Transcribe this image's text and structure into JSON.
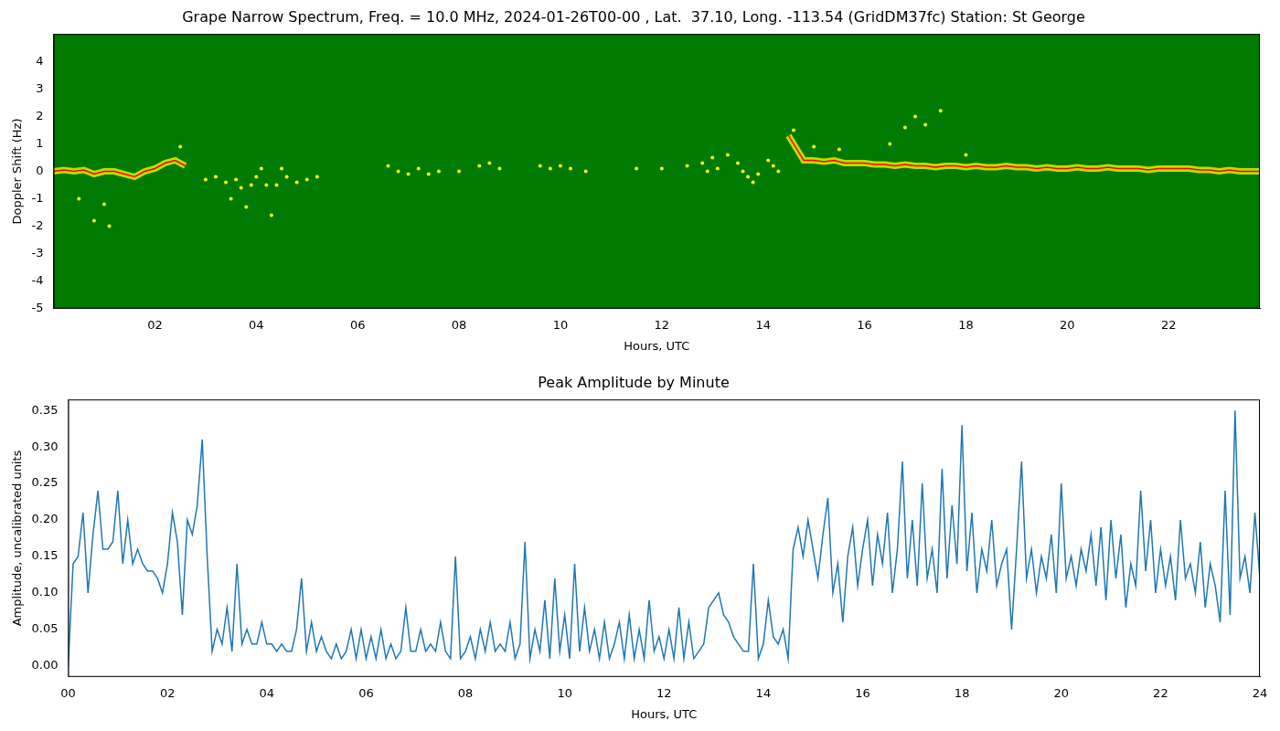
{
  "chart_data": [
    {
      "type": "line",
      "title": "Grape Narrow Spectrum, Freq. = 10.0 MHz, 2024-01-26T00-00 , Lat.  37.10, Long. -113.54 (GridDM37fc) Station: St George",
      "x_label": "Hours, UTC",
      "y_label": "Doppler Shift (Hz)",
      "xlim": [
        0,
        23.8
      ],
      "xticks": [
        {
          "value": 2,
          "label": "02"
        },
        {
          "value": 4,
          "label": "04"
        },
        {
          "value": 6,
          "label": "06"
        },
        {
          "value": 8,
          "label": "08"
        },
        10,
        12,
        14,
        16,
        18,
        20,
        22
      ],
      "ylim": [
        -5,
        5
      ],
      "yticks": [
        -5,
        -4,
        -3,
        -2,
        -1,
        0,
        1,
        2,
        3,
        4
      ],
      "grid": false,
      "series": [
        {
          "type": "scatter",
          "color": "#ffff00",
          "marker": "dot",
          "x": [
            0.5,
            0.8,
            1.0,
            1.1,
            2.5,
            3.0,
            3.2,
            3.4,
            3.5,
            3.6,
            3.7,
            3.8,
            3.9,
            4.0,
            4.1,
            4.2,
            4.3,
            4.4,
            4.5,
            4.6,
            4.8,
            5.0,
            5.2,
            6.6,
            6.8,
            7.0,
            7.2,
            7.4,
            7.6,
            8.0,
            8.4,
            8.6,
            8.8,
            9.6,
            9.8,
            10.0,
            10.2,
            10.5,
            11.5,
            12.0,
            12.5,
            12.8,
            12.9,
            13.0,
            13.1,
            13.3,
            13.5,
            13.6,
            13.7,
            13.8,
            13.9,
            14.1,
            14.2,
            14.3,
            14.6,
            15.0,
            15.5,
            16.5,
            16.8,
            17.0,
            17.2,
            17.5,
            18.0
          ],
          "values": [
            -1.0,
            -1.8,
            -1.2,
            -2.0,
            0.9,
            -0.3,
            -0.2,
            -0.4,
            -1.0,
            -0.3,
            -0.6,
            -1.3,
            -0.5,
            -0.2,
            0.1,
            -0.5,
            -1.6,
            -0.5,
            0.1,
            -0.2,
            -0.4,
            -0.3,
            -0.2,
            0.2,
            0.0,
            -0.1,
            0.1,
            -0.1,
            0.0,
            0.0,
            0.2,
            0.3,
            0.1,
            0.2,
            0.1,
            0.2,
            0.1,
            0.0,
            0.1,
            0.1,
            0.2,
            0.3,
            0.0,
            0.5,
            0.1,
            0.6,
            0.3,
            0.0,
            -0.2,
            -0.4,
            -0.1,
            0.4,
            0.2,
            0.0,
            1.5,
            0.9,
            0.8,
            1.0,
            1.6,
            2.0,
            1.7,
            2.2,
            0.6
          ]
        },
        {
          "type": "line",
          "color": "#ff0000",
          "line_style": "solid",
          "x": [
            0,
            0.2,
            0.4,
            0.6,
            0.8,
            1.0,
            1.2,
            1.4,
            1.6,
            1.8,
            2.0,
            2.2,
            2.4,
            2.6,
            2.8,
            14.5,
            14.6,
            14.8,
            15.0,
            15.2,
            15.4,
            15.6,
            15.8,
            16.0,
            16.2,
            16.4,
            16.6,
            16.8,
            17.0,
            17.2,
            17.4,
            17.6,
            17.8,
            18.0,
            18.2,
            18.4,
            18.6,
            18.8,
            19.0,
            19.2,
            19.4,
            19.6,
            19.8,
            20.0,
            20.2,
            20.4,
            20.6,
            20.8,
            21.0,
            21.2,
            21.4,
            21.6,
            21.8,
            22.0,
            22.2,
            22.4,
            22.6,
            22.8,
            23.0,
            23.2,
            23.4,
            23.6,
            23.8
          ],
          "values": [
            0.0,
            0.05,
            0.0,
            0.05,
            -0.1,
            0.0,
            0.0,
            -0.1,
            -0.2,
            0.0,
            0.1,
            0.3,
            0.4,
            0.2,
            null,
            1.3,
            1.0,
            0.4,
            0.4,
            0.35,
            0.4,
            0.3,
            0.3,
            0.3,
            0.25,
            0.25,
            0.2,
            0.25,
            0.2,
            0.2,
            0.15,
            0.2,
            0.2,
            0.15,
            0.2,
            0.15,
            0.15,
            0.2,
            0.15,
            0.15,
            0.1,
            0.15,
            0.1,
            0.1,
            0.15,
            0.1,
            0.1,
            0.15,
            0.1,
            0.1,
            0.1,
            0.05,
            0.1,
            0.1,
            0.1,
            0.1,
            0.05,
            0.05,
            0.0,
            0.05,
            0.0,
            0.0,
            0.0
          ]
        }
      ]
    },
    {
      "type": "line",
      "title": "Peak Amplitude by Minute",
      "x_label": "Hours, UTC",
      "y_label": "Amplitude, uncalibrated units",
      "xlim": [
        0,
        24
      ],
      "xticks": [
        {
          "value": 0,
          "label": "00"
        },
        {
          "value": 2,
          "label": "02"
        },
        {
          "value": 4,
          "label": "04"
        },
        {
          "value": 6,
          "label": "06"
        },
        {
          "value": 8,
          "label": "08"
        },
        10,
        12,
        14,
        16,
        18,
        20,
        22,
        24
      ],
      "ylim": [
        -0.015,
        0.365
      ],
      "yticks": [
        {
          "value": 0,
          "label": "0.00"
        },
        0.05,
        {
          "value": 0.1,
          "label": "0.10"
        },
        0.15,
        {
          "value": 0.2,
          "label": "0.20"
        },
        0.25,
        {
          "value": 0.3,
          "label": "0.30"
        },
        0.35
      ],
      "grid": false,
      "color": "#1f77b4",
      "line_style": "solid",
      "x": [
        0,
        0.1,
        0.2,
        0.3,
        0.4,
        0.5,
        0.6,
        0.7,
        0.8,
        0.9,
        1,
        1.1,
        1.2,
        1.3,
        1.4,
        1.5,
        1.6,
        1.7,
        1.8,
        1.9,
        2,
        2.1,
        2.2,
        2.3,
        2.4,
        2.5,
        2.6,
        2.7,
        2.8,
        2.9,
        3,
        3.1,
        3.2,
        3.3,
        3.4,
        3.5,
        3.6,
        3.7,
        3.8,
        3.9,
        4,
        4.1,
        4.2,
        4.3,
        4.4,
        4.5,
        4.6,
        4.7,
        4.8,
        4.9,
        5,
        5.1,
        5.2,
        5.3,
        5.4,
        5.5,
        5.6,
        5.7,
        5.8,
        5.9,
        6,
        6.1,
        6.2,
        6.3,
        6.4,
        6.5,
        6.6,
        6.7,
        6.8,
        6.9,
        7,
        7.1,
        7.2,
        7.3,
        7.4,
        7.5,
        7.6,
        7.7,
        7.8,
        7.9,
        8,
        8.1,
        8.2,
        8.3,
        8.4,
        8.5,
        8.6,
        8.7,
        8.8,
        8.9,
        9,
        9.1,
        9.2,
        9.3,
        9.4,
        9.5,
        9.6,
        9.7,
        9.8,
        9.9,
        10,
        10.1,
        10.2,
        10.3,
        10.4,
        10.5,
        10.6,
        10.7,
        10.8,
        10.9,
        11,
        11.1,
        11.2,
        11.3,
        11.4,
        11.5,
        11.6,
        11.7,
        11.8,
        11.9,
        12,
        12.1,
        12.2,
        12.3,
        12.4,
        12.5,
        12.6,
        12.7,
        12.8,
        12.9,
        13,
        13.1,
        13.2,
        13.3,
        13.4,
        13.5,
        13.6,
        13.7,
        13.8,
        13.9,
        14,
        14.1,
        14.2,
        14.3,
        14.4,
        14.5,
        14.6,
        14.7,
        14.8,
        14.9,
        15,
        15.1,
        15.2,
        15.3,
        15.4,
        15.5,
        15.6,
        15.7,
        15.8,
        15.9,
        16,
        16.1,
        16.2,
        16.3,
        16.4,
        16.5,
        16.6,
        16.7,
        16.8,
        16.9,
        17,
        17.1,
        17.2,
        17.3,
        17.4,
        17.5,
        17.6,
        17.7,
        17.8,
        17.9,
        18,
        18.1,
        18.2,
        18.3,
        18.4,
        18.5,
        18.6,
        18.7,
        18.8,
        18.9,
        19,
        19.1,
        19.2,
        19.3,
        19.4,
        19.5,
        19.6,
        19.7,
        19.8,
        19.9,
        20,
        20.1,
        20.2,
        20.3,
        20.4,
        20.5,
        20.6,
        20.7,
        20.8,
        20.9,
        21,
        21.1,
        21.2,
        21.3,
        21.4,
        21.5,
        21.6,
        21.7,
        21.8,
        21.9,
        22,
        22.1,
        22.2,
        22.3,
        22.4,
        22.5,
        22.6,
        22.7,
        22.8,
        22.9,
        23,
        23.1,
        23.2,
        23.3,
        23.4,
        23.5,
        23.6,
        23.7,
        23.8,
        23.9,
        24
      ],
      "values": [
        0.0,
        0.14,
        0.15,
        0.21,
        0.1,
        0.18,
        0.24,
        0.16,
        0.16,
        0.17,
        0.24,
        0.14,
        0.2,
        0.14,
        0.16,
        0.14,
        0.13,
        0.13,
        0.12,
        0.1,
        0.14,
        0.21,
        0.17,
        0.07,
        0.2,
        0.18,
        0.22,
        0.31,
        0.15,
        0.02,
        0.05,
        0.03,
        0.08,
        0.02,
        0.14,
        0.03,
        0.05,
        0.03,
        0.03,
        0.06,
        0.03,
        0.03,
        0.02,
        0.03,
        0.02,
        0.02,
        0.05,
        0.12,
        0.02,
        0.06,
        0.02,
        0.04,
        0.02,
        0.01,
        0.03,
        0.01,
        0.02,
        0.05,
        0.01,
        0.05,
        0.01,
        0.04,
        0.01,
        0.05,
        0.01,
        0.03,
        0.01,
        0.02,
        0.08,
        0.02,
        0.02,
        0.05,
        0.02,
        0.03,
        0.02,
        0.06,
        0.02,
        0.01,
        0.15,
        0.01,
        0.02,
        0.04,
        0.01,
        0.05,
        0.02,
        0.06,
        0.02,
        0.03,
        0.02,
        0.06,
        0.01,
        0.03,
        0.17,
        0.01,
        0.05,
        0.02,
        0.09,
        0.01,
        0.12,
        0.02,
        0.07,
        0.01,
        0.14,
        0.02,
        0.08,
        0.02,
        0.05,
        0.01,
        0.06,
        0.01,
        0.03,
        0.06,
        0.01,
        0.07,
        0.01,
        0.05,
        0.01,
        0.09,
        0.02,
        0.04,
        0.01,
        0.05,
        0.01,
        0.08,
        0.01,
        0.06,
        0.01,
        0.02,
        0.03,
        0.08,
        0.09,
        0.1,
        0.07,
        0.06,
        0.04,
        0.03,
        0.02,
        0.02,
        0.14,
        0.01,
        0.03,
        0.09,
        0.04,
        0.03,
        0.05,
        0.01,
        0.16,
        0.19,
        0.15,
        0.2,
        0.16,
        0.12,
        0.18,
        0.23,
        0.1,
        0.14,
        0.06,
        0.15,
        0.19,
        0.11,
        0.16,
        0.2,
        0.11,
        0.18,
        0.14,
        0.21,
        0.1,
        0.16,
        0.28,
        0.12,
        0.2,
        0.11,
        0.25,
        0.12,
        0.16,
        0.1,
        0.27,
        0.12,
        0.22,
        0.14,
        0.33,
        0.13,
        0.21,
        0.1,
        0.16,
        0.13,
        0.2,
        0.11,
        0.14,
        0.16,
        0.05,
        0.16,
        0.28,
        0.12,
        0.16,
        0.1,
        0.15,
        0.12,
        0.18,
        0.1,
        0.25,
        0.12,
        0.15,
        0.11,
        0.16,
        0.13,
        0.18,
        0.11,
        0.19,
        0.09,
        0.2,
        0.12,
        0.18,
        0.08,
        0.14,
        0.11,
        0.24,
        0.13,
        0.2,
        0.1,
        0.16,
        0.11,
        0.15,
        0.09,
        0.2,
        0.12,
        0.14,
        0.1,
        0.17,
        0.08,
        0.14,
        0.11,
        0.06,
        0.24,
        0.07,
        0.35,
        0.12,
        0.15,
        0.1,
        0.21,
        0.12
      ]
    }
  ]
}
